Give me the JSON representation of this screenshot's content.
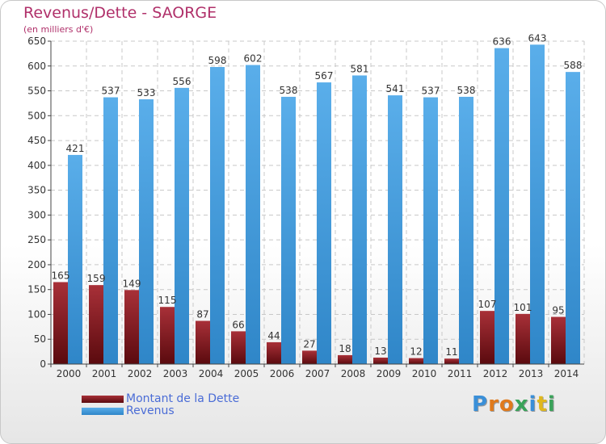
{
  "header": {
    "title": "Revenus/Dette - SAORGE",
    "subtitle": "(en milliers d'€)"
  },
  "chart_data": {
    "type": "bar",
    "categories": [
      "2000",
      "2001",
      "2002",
      "2003",
      "2004",
      "2005",
      "2006",
      "2007",
      "2008",
      "2009",
      "2010",
      "2011",
      "2012",
      "2013",
      "2014"
    ],
    "series": [
      {
        "name": "Montant de la Dette",
        "values": [
          165,
          159,
          149,
          115,
          87,
          66,
          44,
          27,
          18,
          13,
          12,
          11,
          107,
          101,
          95
        ],
        "color": "#6e1014"
      },
      {
        "name": "Revenus",
        "values": [
          421,
          537,
          533,
          556,
          598,
          602,
          538,
          567,
          581,
          541,
          537,
          538,
          636,
          643,
          588
        ],
        "color": "#4a9fe0"
      }
    ],
    "ylim": [
      0,
      650
    ],
    "yticks": [
      0,
      50,
      100,
      150,
      200,
      250,
      300,
      350,
      400,
      450,
      500,
      550,
      600,
      650
    ],
    "grid": true,
    "legend_position": "bottom-left"
  },
  "legend": {
    "items": [
      {
        "label": "Montant de la Dette",
        "color": "#6e1014"
      },
      {
        "label": "Revenus",
        "color": "#4a9fe0"
      }
    ]
  },
  "logo": {
    "text": "Proxiti",
    "letters": [
      {
        "ch": "P",
        "color": "#3a8fd8"
      },
      {
        "ch": "r",
        "color": "#e07a1c"
      },
      {
        "ch": "o",
        "color": "#e07a1c"
      },
      {
        "ch": "x",
        "color": "#3aa35a"
      },
      {
        "ch": "i",
        "color": "#3a8fd8"
      },
      {
        "ch": "t",
        "color": "#e0b81c"
      },
      {
        "ch": "i",
        "color": "#3aa35a"
      }
    ]
  }
}
